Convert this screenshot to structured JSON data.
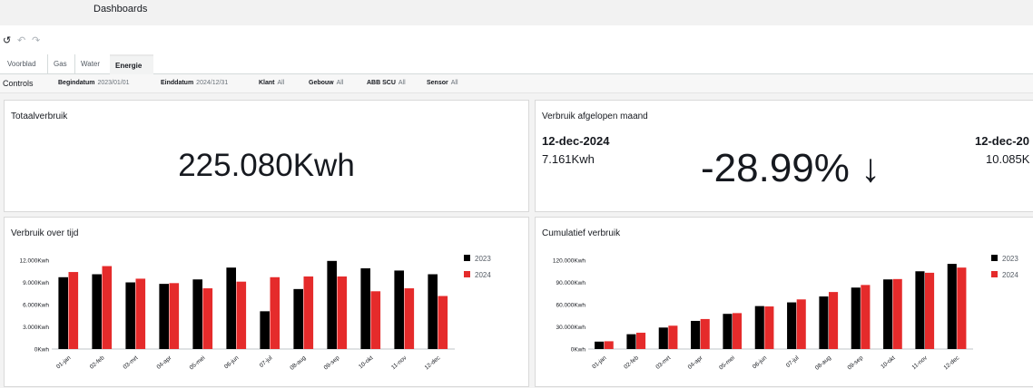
{
  "header": {
    "title": "Dashboards"
  },
  "toolbar": {
    "undo_icon": "refresh-icon",
    "back_icon": "undo-icon",
    "forward_icon": "redo-icon"
  },
  "tabs": [
    {
      "label": "Voorblad"
    },
    {
      "label": "Gas"
    },
    {
      "label": "Water"
    },
    {
      "label": "Energie",
      "active": true
    }
  ],
  "controls": {
    "title": "Controls",
    "filters": [
      {
        "label": "Begindatum",
        "value": "2023/01/01"
      },
      {
        "label": "Einddatum",
        "value": "2024/12/31"
      },
      {
        "label": "Klant",
        "value": "All"
      },
      {
        "label": "Gebouw",
        "value": "All"
      },
      {
        "label": "ABB SCU",
        "value": "All"
      },
      {
        "label": "Sensor",
        "value": "All"
      }
    ]
  },
  "total_card": {
    "title": "Totaalverbruik",
    "value": "225.080Kwh"
  },
  "kpi_card": {
    "title": "Verbruik afgelopen maand",
    "left_date": "12-dec-2024",
    "left_value": "7.161Kwh",
    "percent": "-28.99% ↓",
    "right_date": "12-dec-20",
    "right_value": "10.085K"
  },
  "chart_data": [
    {
      "type": "bar",
      "title": "Verbruik over tijd",
      "categories": [
        "01-jan",
        "02-feb",
        "03-mrt",
        "04-apr",
        "05-mei",
        "06-jun",
        "07-jul",
        "08-aug",
        "09-sep",
        "10-okt",
        "11-nov",
        "12-dec"
      ],
      "series": [
        {
          "name": "2023",
          "color": "#000000",
          "values": [
            9700,
            10100,
            9000,
            8800,
            9400,
            11000,
            5100,
            8100,
            11900,
            10900,
            10600,
            10100
          ]
        },
        {
          "name": "2024",
          "color": "#e52b2b",
          "values": [
            10400,
            11200,
            9500,
            8900,
            8200,
            9100,
            9700,
            9800,
            9800,
            7800,
            8200,
            7161
          ]
        }
      ],
      "yticks": [
        "0Kwh",
        "3.000Kwh",
        "6.000Kwh",
        "9.000Kwh",
        "12.000Kwh"
      ],
      "ylim": [
        0,
        12000
      ],
      "legend": "right"
    },
    {
      "type": "bar",
      "title": "Cumulatief verbruik",
      "categories": [
        "01-jan",
        "02-feb",
        "03-mrt",
        "04-apr",
        "05-mei",
        "06-jun",
        "07-jul",
        "08-aug",
        "09-sep",
        "10-okt",
        "11-nov",
        "12-dec"
      ],
      "series": [
        {
          "name": "2023",
          "color": "#000000",
          "values": [
            10000,
            20000,
            29000,
            38000,
            47500,
            58000,
            63000,
            71000,
            83000,
            94000,
            105000,
            115000
          ]
        },
        {
          "name": "2024",
          "color": "#e52b2b",
          "values": [
            10500,
            22000,
            31500,
            40500,
            48500,
            57500,
            67000,
            77000,
            86500,
            94500,
            103000,
            110000
          ]
        }
      ],
      "yticks": [
        "0Kwh",
        "30.000Kwh",
        "60.000Kwh",
        "90.000Kwh",
        "120.000Kwh"
      ],
      "ylim": [
        0,
        120000
      ],
      "legend": "right"
    }
  ]
}
